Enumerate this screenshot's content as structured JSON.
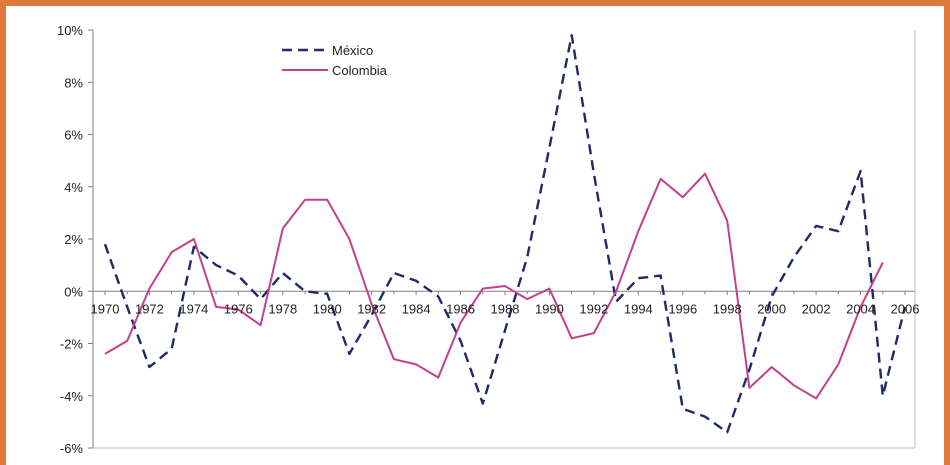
{
  "colors": {
    "frame": "#e07a3c",
    "mexico": "#1f2a66",
    "colombia": "#c2408f",
    "axis": "#808080"
  },
  "chart_data": {
    "type": "line",
    "title": "",
    "xlabel": "",
    "ylabel": "",
    "ylim": [
      -6,
      10
    ],
    "xlim": [
      1970,
      2006
    ],
    "y_ticks": [
      -6,
      -4,
      -2,
      0,
      2,
      4,
      6,
      8,
      10
    ],
    "y_tick_labels": [
      "-6%",
      "-4%",
      "-2%",
      "0%",
      "2%",
      "4%",
      "6%",
      "8%",
      "10%"
    ],
    "x_ticks": [
      1970,
      1972,
      1974,
      1976,
      1978,
      1980,
      1982,
      1984,
      1986,
      1988,
      1990,
      1992,
      1994,
      1996,
      1998,
      2000,
      2002,
      2004,
      2006
    ],
    "x_tick_labels": [
      "1970",
      "1972",
      "1974",
      "1976",
      "1978",
      "1980",
      "1982",
      "1984",
      "1986",
      "1988",
      "1990",
      "1992",
      "1994",
      "1996",
      "1998",
      "2000",
      "2002",
      "2004",
      "2006"
    ],
    "grid": false,
    "legend_position": "top-left",
    "series": [
      {
        "name": "México",
        "style": "dashed",
        "x": [
          1970,
          1971,
          1972,
          1973,
          1974,
          1975,
          1976,
          1977,
          1978,
          1979,
          1980,
          1981,
          1982,
          1983,
          1984,
          1985,
          1986,
          1987,
          1988,
          1989,
          1990,
          1991,
          1992,
          1993,
          1994,
          1995,
          1996,
          1997,
          1998,
          1999,
          2000,
          2001,
          2002,
          2003,
          2004,
          2005,
          2006
        ],
        "values": [
          1.8,
          -0.6,
          -2.9,
          -2.2,
          1.7,
          1.0,
          0.6,
          -0.3,
          0.7,
          0.0,
          -0.1,
          -2.4,
          -0.9,
          0.7,
          0.4,
          -0.2,
          -1.9,
          -4.3,
          -1.5,
          1.3,
          5.5,
          9.8,
          4.5,
          -0.4,
          0.5,
          0.6,
          -4.5,
          -4.8,
          -5.4,
          -3.0,
          -0.2,
          1.3,
          2.5,
          2.3,
          4.6,
          -4.0,
          -0.6
        ]
      },
      {
        "name": "Colombia",
        "style": "solid",
        "x": [
          1970,
          1971,
          1972,
          1973,
          1974,
          1975,
          1976,
          1977,
          1978,
          1979,
          1980,
          1981,
          1982,
          1983,
          1984,
          1985,
          1986,
          1987,
          1988,
          1989,
          1990,
          1991,
          1992,
          1993,
          1994,
          1995,
          1996,
          1997,
          1998,
          1999,
          2000,
          2001,
          2002,
          2003,
          2004,
          2005
        ],
        "values": [
          -2.4,
          -1.9,
          0.1,
          1.5,
          2.0,
          -0.6,
          -0.7,
          -1.3,
          2.4,
          3.5,
          3.5,
          2.0,
          -0.5,
          -2.6,
          -2.8,
          -3.3,
          -1.2,
          0.1,
          0.2,
          -0.3,
          0.1,
          -1.8,
          -1.6,
          0.0,
          2.3,
          4.3,
          3.6,
          4.5,
          2.7,
          -3.7,
          -2.9,
          -3.6,
          -4.1,
          -2.8,
          -0.6,
          1.1
        ]
      }
    ]
  }
}
